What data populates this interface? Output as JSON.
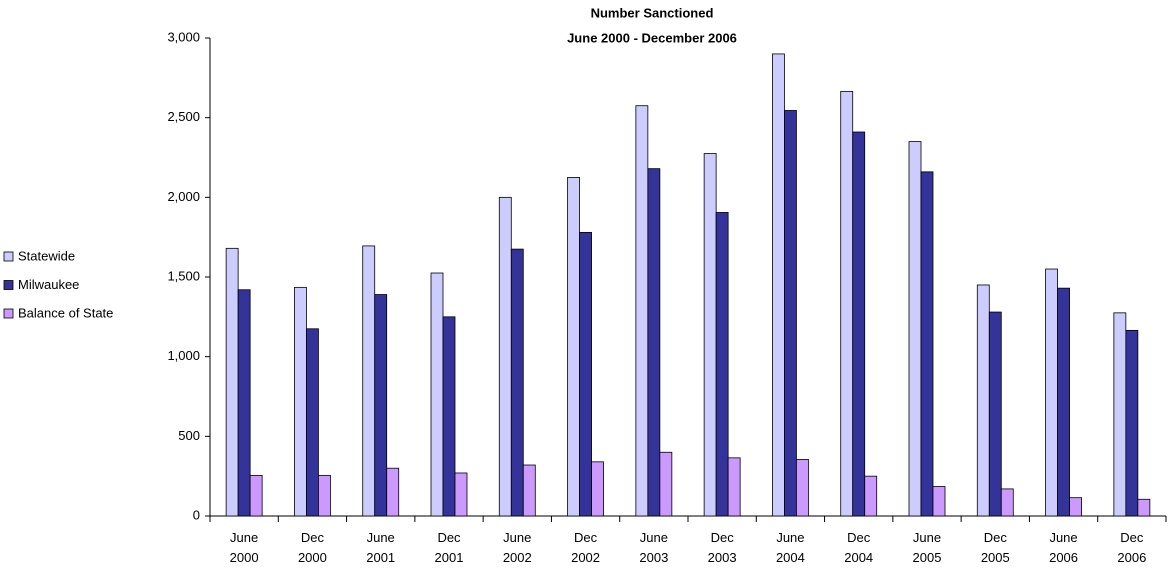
{
  "chart_data": {
    "type": "bar",
    "title": "Number Sanctioned",
    "subtitle": "June 2000 - December 2006",
    "categories": [
      "June 2000",
      "Dec 2000",
      "June 2001",
      "Dec 2001",
      "June 2002",
      "Dec 2002",
      "June 2003",
      "Dec 2003",
      "June 2004",
      "Dec 2004",
      "June 2005",
      "Dec 2005",
      "June 2006",
      "Dec 2006"
    ],
    "series": [
      {
        "name": "Statewide",
        "color": "#ccccff",
        "values": [
          1680,
          1435,
          1695,
          1525,
          2000,
          2125,
          2575,
          2275,
          2900,
          2665,
          2350,
          1450,
          1550,
          1275
        ]
      },
      {
        "name": "Milwaukee",
        "color": "#333399",
        "values": [
          1420,
          1175,
          1390,
          1250,
          1675,
          1780,
          2180,
          1905,
          2545,
          2410,
          2160,
          1280,
          1430,
          1165
        ]
      },
      {
        "name": "Balance of State",
        "color": "#cc99ff",
        "values": [
          255,
          255,
          300,
          270,
          320,
          340,
          400,
          365,
          355,
          250,
          185,
          170,
          115,
          105
        ]
      }
    ],
    "ylim": [
      0,
      3000
    ],
    "yticks": [
      0,
      500,
      {
        "value": 1000,
        "label": "1,000"
      },
      {
        "value": 1500,
        "label": "1,500"
      },
      {
        "value": 2000,
        "label": "2,000"
      },
      {
        "value": 2500,
        "label": "2,500"
      },
      {
        "value": 3000,
        "label": "3,000"
      }
    ],
    "legend": "left"
  }
}
